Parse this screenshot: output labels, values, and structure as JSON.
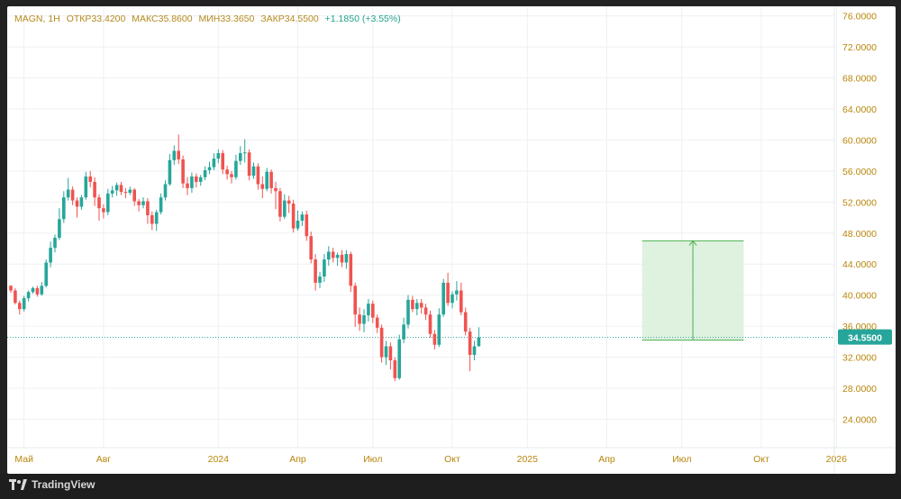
{
  "legend": {
    "symbol": "MAGN, 1H",
    "open_label": "ОТКР",
    "open": "33.4200",
    "high_label": "МАКС",
    "high": "35.8600",
    "low_label": "МИН",
    "low": "33.3650",
    "close_label": "ЗАКР",
    "close": "34.5500",
    "change": "+1.1850 (+3.55%)"
  },
  "brand": "TradingView",
  "colors": {
    "up": "#26a69a",
    "down": "#ef5350",
    "axis_text": "#b8860b",
    "grid": "#eef0f3",
    "price_line": "#26a69a",
    "projection_fill": "#d9efd9",
    "projection_line": "#4caf50"
  },
  "chart_data": {
    "type": "candlestick",
    "title": "MAGN, 1H",
    "ylim": [
      21.5,
      77.0
    ],
    "yticks": [
      "76.0000",
      "72.0000",
      "68.0000",
      "64.0000",
      "60.0000",
      "56.0000",
      "52.0000",
      "48.0000",
      "44.0000",
      "40.0000",
      "36.0000",
      "32.0000",
      "28.0000",
      "24.0000"
    ],
    "xlim": [
      0,
      180
    ],
    "xticks": [
      {
        "label": "Май",
        "pos": 3
      },
      {
        "label": "Авг",
        "pos": 21
      },
      {
        "label": "2024",
        "pos": 47
      },
      {
        "label": "Апр",
        "pos": 65
      },
      {
        "label": "Июл",
        "pos": 82
      },
      {
        "label": "Окт",
        "pos": 100
      },
      {
        "label": "2025",
        "pos": 117
      },
      {
        "label": "Апр",
        "pos": 135
      },
      {
        "label": "Июл",
        "pos": 152
      },
      {
        "label": "Окт",
        "pos": 170
      },
      {
        "label": "2026",
        "pos": 187
      }
    ],
    "last_price": 34.55,
    "last_price_label": "34.5500",
    "projection": {
      "x_start": 143,
      "x_end": 166,
      "y_low": 34.2,
      "y_high": 47.0
    },
    "candles": [
      [
        41.2,
        40.6,
        41.3,
        40.3
      ],
      [
        40.6,
        39.0,
        40.9,
        38.8
      ],
      [
        39.0,
        38.2,
        39.3,
        37.5
      ],
      [
        38.2,
        39.6,
        39.9,
        37.9
      ],
      [
        39.6,
        40.4,
        40.6,
        39.2
      ],
      [
        40.4,
        40.9,
        41.1,
        40.2
      ],
      [
        40.9,
        40.1,
        41.2,
        39.8
      ],
      [
        40.1,
        41.2,
        41.7,
        39.9
      ],
      [
        41.2,
        44.2,
        44.6,
        41.0
      ],
      [
        44.2,
        46.1,
        46.9,
        43.6
      ],
      [
        46.1,
        47.4,
        47.8,
        45.5
      ],
      [
        47.4,
        49.8,
        51.2,
        47.1
      ],
      [
        49.8,
        52.6,
        53.4,
        49.3
      ],
      [
        52.6,
        53.6,
        55.1,
        52.2
      ],
      [
        53.6,
        52.2,
        54.0,
        51.6
      ],
      [
        52.2,
        51.4,
        52.6,
        50.0
      ],
      [
        51.4,
        52.6,
        52.9,
        51.0
      ],
      [
        52.6,
        55.3,
        55.9,
        52.3
      ],
      [
        55.3,
        54.6,
        56.0,
        53.9
      ],
      [
        54.6,
        52.6,
        55.2,
        51.5
      ],
      [
        52.6,
        51.2,
        53.0,
        49.6
      ],
      [
        51.2,
        50.7,
        51.7,
        49.9
      ],
      [
        50.7,
        53.1,
        53.7,
        50.3
      ],
      [
        53.1,
        53.5,
        54.1,
        52.6
      ],
      [
        53.5,
        54.2,
        54.5,
        52.8
      ],
      [
        54.2,
        53.3,
        54.6,
        52.9
      ],
      [
        53.3,
        53.2,
        53.8,
        52.5
      ],
      [
        53.2,
        53.6,
        54.0,
        52.9
      ],
      [
        53.6,
        52.1,
        53.8,
        51.5
      ],
      [
        52.1,
        51.6,
        52.4,
        50.8
      ],
      [
        51.6,
        52.1,
        52.6,
        51.2
      ],
      [
        52.1,
        50.3,
        52.5,
        49.2
      ],
      [
        50.3,
        49.2,
        50.8,
        48.4
      ],
      [
        49.2,
        50.7,
        51.0,
        48.3
      ],
      [
        50.7,
        52.6,
        53.1,
        50.4
      ],
      [
        52.6,
        54.3,
        54.8,
        52.2
      ],
      [
        54.3,
        57.4,
        58.2,
        54.1
      ],
      [
        57.4,
        58.6,
        59.3,
        56.8
      ],
      [
        58.6,
        57.5,
        60.7,
        56.9
      ],
      [
        57.5,
        54.4,
        58.0,
        53.8
      ],
      [
        54.4,
        53.8,
        55.2,
        52.9
      ],
      [
        53.8,
        55.3,
        55.8,
        53.2
      ],
      [
        55.3,
        54.6,
        55.7,
        53.9
      ],
      [
        54.6,
        55.2,
        55.5,
        54.1
      ],
      [
        55.2,
        56.1,
        56.6,
        54.8
      ],
      [
        56.1,
        56.5,
        57.2,
        55.6
      ],
      [
        56.5,
        57.6,
        58.3,
        56.1
      ],
      [
        57.6,
        58.3,
        58.8,
        57.0
      ],
      [
        58.3,
        56.2,
        58.7,
        55.6
      ],
      [
        56.2,
        55.6,
        56.7,
        54.9
      ],
      [
        55.6,
        55.2,
        56.0,
        54.4
      ],
      [
        55.2,
        57.3,
        58.1,
        54.9
      ],
      [
        57.3,
        58.3,
        59.2,
        56.8
      ],
      [
        58.3,
        58.4,
        60.1,
        57.1
      ],
      [
        58.4,
        55.4,
        58.8,
        54.8
      ],
      [
        55.4,
        56.6,
        57.1,
        55.0
      ],
      [
        56.6,
        54.3,
        57.0,
        53.6
      ],
      [
        54.3,
        53.7,
        55.3,
        52.5
      ],
      [
        53.7,
        55.9,
        56.4,
        53.4
      ],
      [
        55.9,
        53.8,
        56.2,
        53.1
      ],
      [
        53.8,
        53.4,
        54.6,
        51.1
      ],
      [
        53.4,
        50.1,
        53.8,
        49.5
      ],
      [
        50.1,
        52.2,
        53.0,
        49.8
      ],
      [
        52.2,
        51.8,
        52.8,
        50.6
      ],
      [
        51.8,
        48.6,
        52.3,
        48.1
      ],
      [
        48.6,
        49.6,
        50.9,
        48.3
      ],
      [
        49.6,
        50.4,
        50.8,
        48.9
      ],
      [
        50.4,
        47.6,
        50.9,
        47.0
      ],
      [
        47.6,
        44.6,
        48.2,
        44.1
      ],
      [
        44.6,
        41.6,
        45.3,
        40.6
      ],
      [
        41.6,
        42.4,
        43.0,
        40.9
      ],
      [
        42.4,
        44.6,
        45.3,
        41.7
      ],
      [
        44.6,
        45.6,
        46.3,
        43.8
      ],
      [
        45.6,
        44.8,
        46.1,
        44.2
      ],
      [
        44.8,
        45.2,
        45.5,
        43.8
      ],
      [
        45.2,
        44.2,
        45.8,
        43.6
      ],
      [
        44.2,
        45.3,
        45.8,
        43.4
      ],
      [
        45.3,
        41.2,
        45.6,
        40.4
      ],
      [
        41.2,
        37.5,
        41.6,
        35.9
      ],
      [
        37.5,
        36.3,
        38.4,
        35.4
      ],
      [
        36.3,
        37.4,
        38.2,
        35.2
      ],
      [
        37.4,
        38.9,
        39.5,
        36.6
      ],
      [
        38.9,
        37.1,
        39.3,
        36.4
      ],
      [
        37.1,
        35.8,
        37.5,
        35.1
      ],
      [
        35.8,
        32.0,
        36.2,
        31.3
      ],
      [
        32.0,
        33.4,
        34.1,
        31.0
      ],
      [
        33.4,
        31.6,
        33.9,
        30.4
      ],
      [
        31.6,
        29.3,
        32.0,
        28.9
      ],
      [
        29.3,
        34.3,
        34.9,
        29.1
      ],
      [
        34.3,
        36.2,
        37.1,
        33.8
      ],
      [
        36.2,
        39.4,
        40.0,
        35.7
      ],
      [
        39.4,
        38.2,
        39.9,
        37.8
      ],
      [
        38.2,
        39.0,
        39.5,
        37.4
      ],
      [
        39.0,
        38.4,
        39.5,
        37.6
      ],
      [
        38.4,
        37.5,
        38.9,
        36.8
      ],
      [
        37.5,
        35.0,
        38.0,
        34.5
      ],
      [
        35.0,
        33.6,
        35.5,
        33.0
      ],
      [
        33.6,
        37.5,
        38.3,
        33.3
      ],
      [
        37.5,
        41.6,
        42.1,
        37.2
      ],
      [
        41.6,
        39.0,
        42.9,
        38.6
      ],
      [
        39.0,
        40.1,
        40.5,
        38.3
      ],
      [
        40.1,
        40.6,
        41.8,
        39.3
      ],
      [
        40.6,
        37.8,
        41.6,
        37.4
      ],
      [
        37.8,
        35.3,
        38.4,
        34.8
      ],
      [
        35.3,
        32.3,
        35.8,
        30.2
      ],
      [
        32.3,
        33.4,
        34.1,
        31.6
      ],
      [
        33.42,
        34.55,
        35.86,
        33.365
      ]
    ]
  }
}
